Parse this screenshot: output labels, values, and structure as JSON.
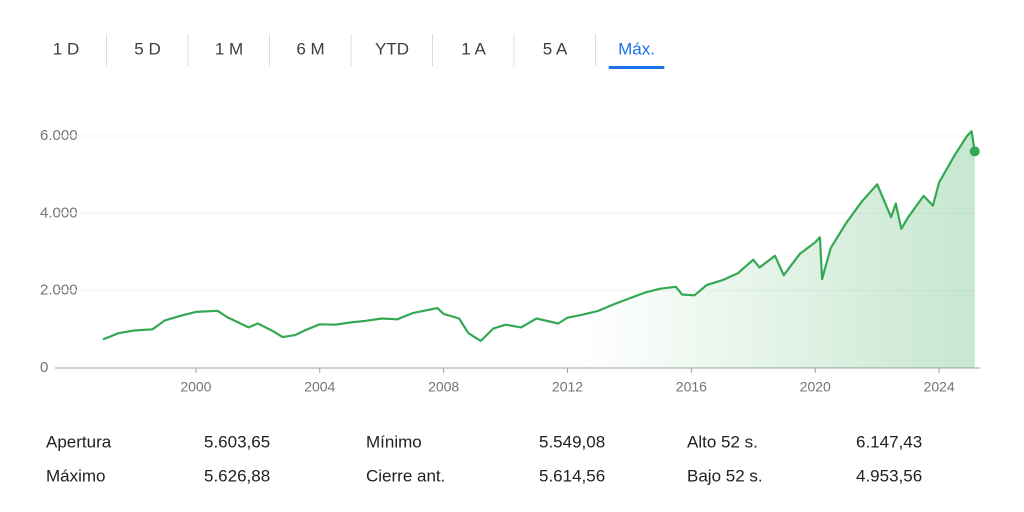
{
  "tabs": [
    {
      "label": "1 D",
      "active": false
    },
    {
      "label": "5 D",
      "active": false
    },
    {
      "label": "1 M",
      "active": false
    },
    {
      "label": "6 M",
      "active": false
    },
    {
      "label": "YTD",
      "active": false
    },
    {
      "label": "1 A",
      "active": false
    },
    {
      "label": "5 A",
      "active": false
    },
    {
      "label": "Máx.",
      "active": true
    }
  ],
  "chart_data": {
    "type": "line",
    "x": [
      1997.0,
      1997.5,
      1998.0,
      1998.6,
      1999.0,
      1999.5,
      2000.0,
      2000.7,
      2001.0,
      2001.7,
      2002.0,
      2002.5,
      2002.8,
      2003.2,
      2003.6,
      2004.0,
      2004.5,
      2005.0,
      2005.5,
      2006.0,
      2006.5,
      2007.0,
      2007.8,
      2008.0,
      2008.5,
      2008.8,
      2009.2,
      2009.6,
      2010.0,
      2010.5,
      2011.0,
      2011.7,
      2012.0,
      2012.5,
      2013.0,
      2013.5,
      2014.0,
      2014.5,
      2015.0,
      2015.5,
      2015.7,
      2016.1,
      2016.5,
      2017.0,
      2017.5,
      2018.0,
      2018.2,
      2018.7,
      2018.98,
      2019.5,
      2020.0,
      2020.15,
      2020.22,
      2020.5,
      2021.0,
      2021.5,
      2022.0,
      2022.45,
      2022.6,
      2022.78,
      2023.0,
      2023.5,
      2023.8,
      2024.0,
      2024.5,
      2024.9,
      2025.05,
      2025.15
    ],
    "series": [
      {
        "color": "#34a853",
        "values": [
          740,
          900,
          970,
          1000,
          1230,
          1350,
          1450,
          1480,
          1320,
          1050,
          1150,
          950,
          800,
          850,
          1000,
          1130,
          1120,
          1180,
          1220,
          1280,
          1260,
          1420,
          1550,
          1400,
          1280,
          900,
          700,
          1020,
          1120,
          1050,
          1280,
          1150,
          1300,
          1380,
          1480,
          1650,
          1800,
          1950,
          2050,
          2100,
          1900,
          1880,
          2150,
          2270,
          2450,
          2800,
          2600,
          2900,
          2400,
          2950,
          3250,
          3380,
          2300,
          3100,
          3750,
          4300,
          4750,
          3900,
          4250,
          3600,
          3900,
          4450,
          4200,
          4800,
          5500,
          6000,
          6120,
          5600
        ]
      }
    ],
    "xlim": [
      1995.45,
      2025.32
    ],
    "xticks": [
      2000,
      2004,
      2008,
      2012,
      2016,
      2020,
      2024
    ],
    "ylim": [
      0,
      6930
    ],
    "yticks": [
      0,
      {
        "value": 2000,
        "label": "2.000"
      },
      {
        "value": 4000,
        "label": "4.000"
      },
      {
        "value": 6000,
        "label": "6.000"
      }
    ],
    "grid": true
  },
  "stats": {
    "rows": [
      [
        {
          "label": "Apertura",
          "value": "5.603,65"
        },
        {
          "label": "Mínimo",
          "value": "5.549,08"
        },
        {
          "label": "Alto 52 s.",
          "value": "6.147,43"
        }
      ],
      [
        {
          "label": "Máximo",
          "value": "5.626,88"
        },
        {
          "label": "Cierre ant.",
          "value": "5.614,56"
        },
        {
          "label": "Bajo 52 s.",
          "value": "4.953,56"
        }
      ]
    ]
  }
}
